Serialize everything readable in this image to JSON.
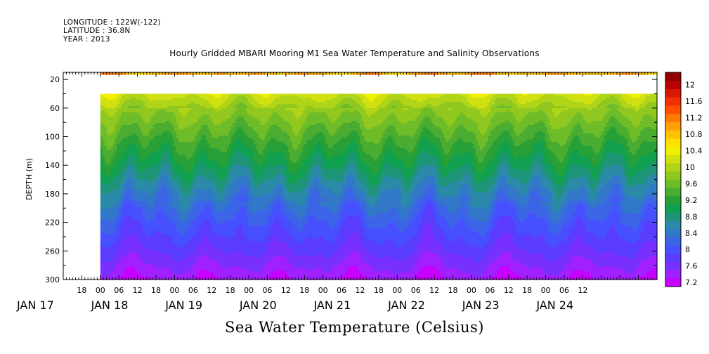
{
  "header": {
    "longitude": "LONGITUDE : 122W(-122)",
    "latitude": "LATITUDE : 36.8N",
    "year": "YEAR : 2013"
  },
  "chart_data": {
    "type": "heatmap",
    "title": "Hourly Gridded MBARI Mooring M1 Sea Water Temperature and Salinity Observations",
    "variable_label": "Sea Water Temperature (Celsius)",
    "ylabel": "DEPTH (m)",
    "ylim": [
      300,
      10
    ],
    "y_ticks": [
      20,
      60,
      100,
      140,
      180,
      220,
      260,
      300
    ],
    "x_range_hours": [
      -12,
      180
    ],
    "hour_labels": [
      "18",
      "00",
      "06",
      "12",
      "18",
      "00",
      "06",
      "12",
      "18",
      "00",
      "06",
      "12",
      "18",
      "00",
      "06",
      "12",
      "18",
      "00",
      "06",
      "12",
      "18",
      "00",
      "06",
      "12",
      "18",
      "00",
      "06",
      "12"
    ],
    "day_labels": [
      "JAN 17",
      "JAN 18",
      "JAN 19",
      "JAN 20",
      "JAN 21",
      "JAN 22",
      "JAN 23",
      "JAN 24"
    ],
    "data_start_hour": 0,
    "gap_depth_range_m": [
      14,
      40
    ],
    "colorbar_levels": [
      7.2,
      7.4,
      7.6,
      7.8,
      8,
      8.2,
      8.4,
      8.6,
      8.8,
      9,
      9.2,
      9.4,
      9.6,
      9.8,
      10,
      10.2,
      10.4,
      10.6,
      10.8,
      11,
      11.2,
      11.4,
      11.6,
      11.8,
      12,
      12.2
    ],
    "colorbar_labels": [
      "7.2",
      "7.6",
      "8",
      "8.4",
      "8.8",
      "9.2",
      "9.6",
      "10",
      "10.4",
      "10.8",
      "11.2",
      "11.6",
      "12"
    ],
    "colors": [
      "#c800ff",
      "#a020ff",
      "#7830ff",
      "#5a3cff",
      "#4650ff",
      "#3c64e6",
      "#3278c8",
      "#2a8aa8",
      "#1e9478",
      "#10a050",
      "#28a038",
      "#4aac30",
      "#6ebc28",
      "#90c820",
      "#b0d418",
      "#d0e010",
      "#f0f000",
      "#ffe000",
      "#ffc000",
      "#ffa000",
      "#ff7800",
      "#ff5000",
      "#f03000",
      "#d81800",
      "#b80000",
      "#900000"
    ],
    "depth_profile": [
      {
        "depth": 10,
        "temp": 11.0
      },
      {
        "depth": 40,
        "temp": 10.3
      },
      {
        "depth": 60,
        "temp": 9.95
      },
      {
        "depth": 100,
        "temp": 9.5
      },
      {
        "depth": 140,
        "temp": 9.05
      },
      {
        "depth": 180,
        "temp": 8.55
      },
      {
        "depth": 220,
        "temp": 8.15
      },
      {
        "depth": 260,
        "temp": 7.8
      },
      {
        "depth": 300,
        "temp": 7.4
      }
    ]
  }
}
